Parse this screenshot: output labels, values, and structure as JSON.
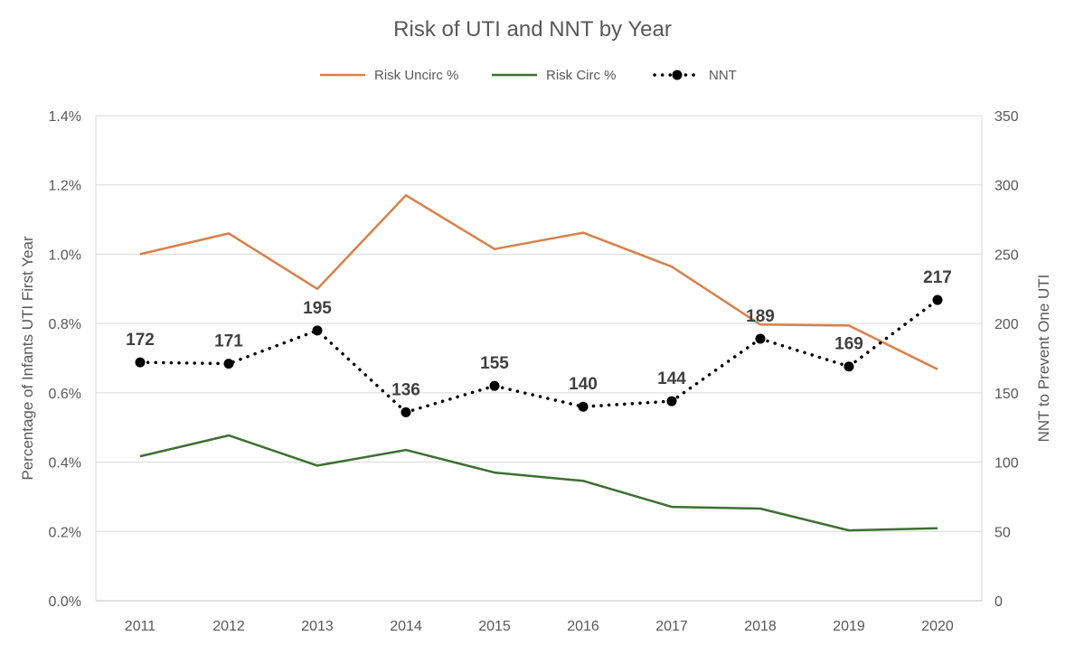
{
  "chart_data": {
    "type": "line",
    "title": "Risk of UTI and NNT by Year",
    "categories": [
      "2011",
      "2012",
      "2013",
      "2014",
      "2015",
      "2016",
      "2017",
      "2018",
      "2019",
      "2020"
    ],
    "series": [
      {
        "name": "Risk Uncirc %",
        "axis": "left",
        "color": "#D9804A",
        "style": "solid",
        "values": [
          1.0,
          1.06,
          0.9,
          1.17,
          1.015,
          1.062,
          0.964,
          0.797,
          0.794,
          0.668
        ]
      },
      {
        "name": "Risk Circ %",
        "axis": "left",
        "color": "#3C7030",
        "style": "solid",
        "values": [
          0.417,
          0.477,
          0.39,
          0.435,
          0.37,
          0.346,
          0.271,
          0.266,
          0.203,
          0.209
        ]
      },
      {
        "name": "NNT",
        "axis": "right",
        "color": "#000000",
        "style": "dotted",
        "markers": true,
        "values": [
          172,
          171,
          195,
          136,
          155,
          140,
          144,
          189,
          169,
          217
        ],
        "labels": [
          "172",
          "171",
          "195",
          "136",
          "155",
          "140",
          "144",
          "189",
          "169",
          "217"
        ]
      }
    ],
    "y_left": {
      "label": "Percentage of Infants UTI First Year",
      "range": [
        0,
        1.4
      ],
      "ticks": [
        0,
        0.2,
        0.4,
        0.6,
        0.8,
        1.0,
        1.2,
        1.4
      ],
      "tick_labels": [
        "0.0%",
        "0.2%",
        "0.4%",
        "0.6%",
        "0.8%",
        "1.0%",
        "1.2%",
        "1.4%"
      ]
    },
    "y_right": {
      "label": "NNT to Prevent One UTI",
      "range": [
        0,
        350
      ],
      "ticks": [
        0,
        50,
        100,
        150,
        200,
        250,
        300,
        350
      ],
      "tick_labels": [
        "0",
        "50",
        "100",
        "150",
        "200",
        "250",
        "300",
        "350"
      ]
    },
    "grid": true,
    "legend_position": "top"
  }
}
